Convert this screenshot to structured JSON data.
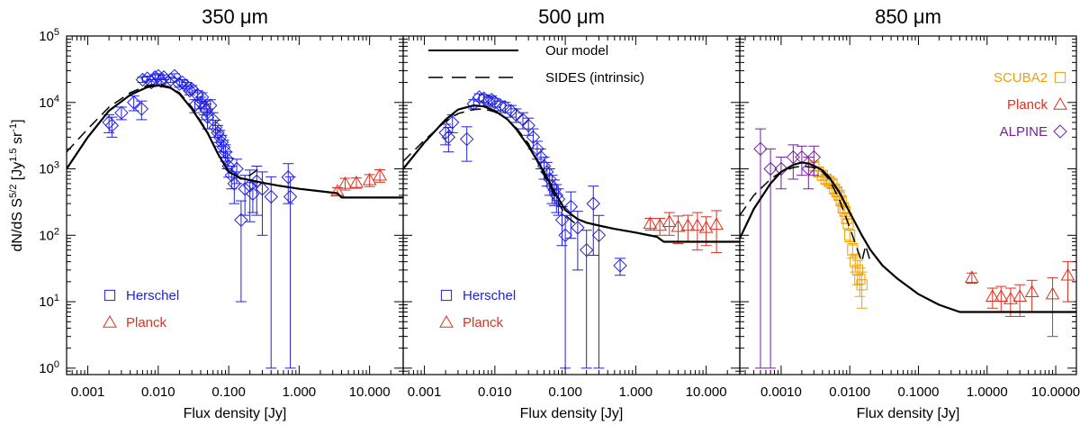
{
  "figure": {
    "ylabel": "dN/dS S^5/2 [Jy^1.5 sr^-1]",
    "ylabel_parts": {
      "main": "dN/dS S",
      "p1": "5/2",
      "mid": " [Jy",
      "p2": "1.5",
      "mid2": " sr",
      "p3": "-1",
      "end": "]"
    }
  },
  "chart_data": [
    {
      "type": "scatter",
      "title": "350 μm",
      "xlabel": "Flux density [Jy]",
      "ylabel": "dN/dS S^5/2 [Jy^1.5 sr^-1]",
      "xscale": "log",
      "yscale": "log",
      "xlim": [
        0.0005,
        30
      ],
      "ylim": [
        0.8,
        100000
      ],
      "xticks": [
        0.001,
        0.01,
        0.1,
        1,
        10
      ],
      "xtick_labels": [
        "0.001",
        "0.010",
        "0.100",
        "1.000",
        "10.000"
      ],
      "yticks": [
        1,
        10,
        100,
        1000,
        10000,
        100000
      ],
      "ytick_labels": [
        "10^0",
        "10^1",
        "10^2",
        "10^3",
        "10^4",
        "10^5"
      ],
      "legend": [
        {
          "label": "Herschel",
          "marker": "square",
          "color": "#2020e0"
        },
        {
          "label": "Planck",
          "marker": "triangle",
          "color": "#e03020"
        }
      ],
      "model": {
        "name": "Our model",
        "style": "solid",
        "x": [
          0.0005,
          0.001,
          0.002,
          0.004,
          0.007,
          0.01,
          0.015,
          0.02,
          0.03,
          0.05,
          0.07,
          0.1,
          0.15,
          0.2,
          0.3,
          0.5,
          1,
          2,
          3.5,
          4,
          10,
          30
        ],
        "y": [
          1000,
          3000,
          7500,
          13000,
          17000,
          18000,
          16500,
          13500,
          8000,
          3500,
          1700,
          900,
          720,
          680,
          620,
          560,
          500,
          460,
          430,
          370,
          370,
          370
        ]
      },
      "sides": {
        "name": "SIDES (intrinsic)",
        "style": "dashed",
        "x": [
          0.0005,
          0.001,
          0.002,
          0.004,
          0.007,
          0.01,
          0.015,
          0.02,
          0.03,
          0.05,
          0.07,
          0.1,
          0.15,
          0.2,
          0.3
        ],
        "y": [
          1800,
          4000,
          8500,
          14000,
          18000,
          19000,
          17000,
          14000,
          8500,
          3600,
          1700,
          900,
          700,
          800,
          1100
        ]
      },
      "series": [
        {
          "name": "Herschel",
          "marker": "diamond",
          "color": "#2020e0",
          "x": [
            0.002,
            0.0022,
            0.003,
            0.0045,
            0.0058,
            0.006,
            0.007,
            0.008,
            0.009,
            0.01,
            0.011,
            0.012,
            0.015,
            0.017,
            0.02,
            0.022,
            0.025,
            0.028,
            0.03,
            0.033,
            0.036,
            0.04,
            0.042,
            0.045,
            0.048,
            0.05,
            0.055,
            0.06,
            0.065,
            0.07,
            0.075,
            0.08,
            0.085,
            0.09,
            0.095,
            0.1,
            0.11,
            0.12,
            0.13,
            0.15,
            0.17,
            0.2,
            0.22,
            0.25,
            0.3,
            0.4,
            0.7,
            0.75
          ],
          "y": [
            5000,
            4500,
            7000,
            10000,
            8000,
            22000,
            23000,
            20000,
            24000,
            25000,
            21000,
            24000,
            22000,
            25000,
            19000,
            20000,
            18000,
            15000,
            16000,
            9000,
            13000,
            10000,
            12000,
            8500,
            7500,
            6000,
            9000,
            5500,
            4200,
            3500,
            3000,
            2500,
            2100,
            1800,
            1400,
            1100,
            800,
            600,
            1000,
            170,
            500,
            560,
            420,
            650,
            500,
            380,
            750,
            380
          ],
          "yerr": [
            1500,
            1500,
            1500,
            2500,
            2500,
            2000,
            2000,
            2000,
            2000,
            2000,
            2000,
            2000,
            2000,
            2000,
            2000,
            2000,
            2000,
            2000,
            2000,
            2000,
            2000,
            2000,
            2000,
            2000,
            2000,
            2000,
            2000,
            1500,
            1200,
            1000,
            800,
            700,
            600,
            500,
            400,
            350,
            300,
            300,
            400,
            160,
            300,
            400,
            200,
            450,
            400,
            379,
            450,
            379
          ]
        },
        {
          "name": "Planck",
          "marker": "triangle",
          "color": "#e03020",
          "x": [
            3.5,
            4.5,
            6.5,
            10,
            14
          ],
          "y": [
            460,
            600,
            620,
            680,
            800
          ],
          "yerr": [
            60,
            120,
            110,
            140,
            170
          ]
        }
      ]
    },
    {
      "type": "scatter",
      "title": "500 μm",
      "xlabel": "Flux density [Jy]",
      "xscale": "log",
      "yscale": "log",
      "xlim": [
        0.0005,
        30
      ],
      "ylim": [
        0.8,
        100000
      ],
      "xticks": [
        0.001,
        0.01,
        0.1,
        1,
        10
      ],
      "xtick_labels": [
        "0.001",
        "0.010",
        "0.100",
        "1.000",
        "10.000"
      ],
      "legend": [
        {
          "label": "Our model",
          "style": "solid",
          "color": "#000000"
        },
        {
          "label": "SIDES (intrinsic)",
          "style": "dashed",
          "color": "#000000"
        },
        {
          "label": "Herschel",
          "marker": "square",
          "color": "#2020e0"
        },
        {
          "label": "Planck",
          "marker": "triangle",
          "color": "#e03020"
        }
      ],
      "model": {
        "name": "Our model",
        "style": "solid",
        "x": [
          0.0005,
          0.001,
          0.002,
          0.003,
          0.005,
          0.007,
          0.01,
          0.015,
          0.02,
          0.03,
          0.05,
          0.07,
          0.1,
          0.15,
          0.2,
          0.3,
          0.5,
          1,
          2,
          2.5,
          3,
          10,
          30
        ],
        "y": [
          1000,
          2500,
          5500,
          7800,
          9000,
          8700,
          7500,
          5600,
          4000,
          2200,
          900,
          450,
          240,
          175,
          155,
          140,
          125,
          110,
          95,
          80,
          80,
          80,
          80
        ]
      },
      "sides": {
        "name": "SIDES (intrinsic)",
        "style": "dashed",
        "x": [
          0.0005,
          0.001,
          0.002,
          0.003,
          0.005,
          0.007,
          0.01,
          0.015,
          0.02,
          0.03,
          0.05,
          0.07,
          0.1,
          0.15
        ],
        "y": [
          1300,
          2700,
          5200,
          6800,
          7800,
          8000,
          7200,
          5600,
          4200,
          2400,
          800,
          400,
          200,
          140
        ]
      },
      "series": [
        {
          "name": "Herschel",
          "marker": "diamond",
          "color": "#2020e0",
          "x": [
            0.002,
            0.0022,
            0.0025,
            0.004,
            0.005,
            0.006,
            0.007,
            0.008,
            0.009,
            0.01,
            0.012,
            0.014,
            0.017,
            0.02,
            0.025,
            0.03,
            0.035,
            0.04,
            0.045,
            0.05,
            0.055,
            0.06,
            0.065,
            0.07,
            0.075,
            0.08,
            0.09,
            0.1,
            0.12,
            0.15,
            0.2,
            0.25,
            0.3,
            0.6
          ],
          "y": [
            3500,
            3000,
            5000,
            2800,
            9500,
            12000,
            11500,
            10500,
            11000,
            10000,
            9000,
            8500,
            7500,
            6500,
            5500,
            4500,
            3000,
            2000,
            1500,
            1100,
            900,
            700,
            550,
            480,
            400,
            350,
            170,
            100,
            270,
            130,
            60,
            300,
            100,
            35
          ],
          "yerr": [
            1200,
            1200,
            1500,
            1500,
            1500,
            1500,
            1500,
            1500,
            1500,
            1500,
            1500,
            1500,
            1500,
            1500,
            1500,
            1300,
            1000,
            600,
            500,
            400,
            350,
            300,
            250,
            200,
            180,
            150,
            100,
            99,
            180,
            100,
            59,
            250,
            99,
            10
          ]
        },
        {
          "name": "Planck",
          "marker": "triangle",
          "color": "#e03020",
          "x": [
            1.6,
            2.2,
            3,
            4,
            5.5,
            7.5,
            10,
            14
          ],
          "y": [
            150,
            140,
            160,
            135,
            140,
            140,
            130,
            145
          ],
          "yerr": [
            30,
            40,
            60,
            60,
            60,
            80,
            60,
            90
          ]
        }
      ]
    },
    {
      "type": "scatter",
      "title": "850 μm",
      "xlabel": "Flux density [Jy]",
      "xscale": "log",
      "yscale": "log",
      "xlim": [
        0.00025,
        20
      ],
      "ylim": [
        0.8,
        100000
      ],
      "xticks": [
        0.001,
        0.01,
        0.1,
        1,
        10
      ],
      "xtick_labels": [
        "0.0010",
        "0.0100",
        "0.1000",
        "1.0000",
        "10.0000"
      ],
      "legend": [
        {
          "label": "SCUBA2",
          "marker": "square",
          "color": "#f0a000"
        },
        {
          "label": "Planck",
          "marker": "triangle",
          "color": "#e03020"
        },
        {
          "label": "ALPINE",
          "marker": "diamond",
          "color": "#7020a0"
        }
      ],
      "model": {
        "name": "Our model",
        "style": "solid",
        "x": [
          0.00025,
          0.0004,
          0.0007,
          0.001,
          0.0015,
          0.002,
          0.0025,
          0.003,
          0.004,
          0.005,
          0.007,
          0.01,
          0.015,
          0.02,
          0.03,
          0.05,
          0.1,
          0.2,
          0.4,
          1,
          3,
          20
        ],
        "y": [
          90,
          250,
          600,
          900,
          1150,
          1250,
          1200,
          1120,
          950,
          750,
          450,
          220,
          100,
          60,
          35,
          22,
          13,
          9,
          7,
          7,
          7,
          7
        ]
      },
      "sides": {
        "name": "SIDES (intrinsic)",
        "style": "dashed",
        "x": [
          0.00025,
          0.0004,
          0.0007,
          0.001,
          0.0015,
          0.002,
          0.003,
          0.004,
          0.005,
          0.007,
          0.01,
          0.013,
          0.015,
          0.017,
          0.02
        ],
        "y": [
          200,
          400,
          700,
          900,
          1050,
          1100,
          1050,
          900,
          700,
          350,
          130,
          60,
          40,
          70,
          40
        ]
      },
      "series": [
        {
          "name": "SCUBA2",
          "marker": "square",
          "color": "#f0a000",
          "x": [
            0.003,
            0.0035,
            0.004,
            0.0045,
            0.005,
            0.0055,
            0.006,
            0.0065,
            0.007,
            0.0075,
            0.008,
            0.0085,
            0.009,
            0.0095,
            0.01,
            0.011,
            0.012,
            0.013,
            0.014,
            0.015
          ],
          "y": [
            1100,
            900,
            800,
            700,
            650,
            600,
            500,
            450,
            400,
            330,
            260,
            230,
            180,
            150,
            100,
            60,
            40,
            30,
            22,
            18
          ],
          "yerr": [
            150,
            130,
            120,
            100,
            90,
            80,
            70,
            60,
            50,
            45,
            40,
            35,
            30,
            25,
            20,
            15,
            12,
            12,
            10,
            10
          ]
        },
        {
          "name": "Planck",
          "marker": "triangle",
          "color": "#e03020",
          "x": [
            0.6,
            1.2,
            1.6,
            2.2,
            3,
            4.5,
            9,
            15
          ],
          "y": [
            23,
            12,
            12,
            11,
            12,
            14,
            13,
            25
          ],
          "yerr": [
            4,
            4,
            5,
            5,
            6,
            7,
            10,
            15
          ]
        },
        {
          "name": "ALPINE",
          "marker": "diamond",
          "color": "#7020a0",
          "x": [
            0.0005,
            0.0007,
            0.001,
            0.0015,
            0.002,
            0.0025,
            0.003
          ],
          "y": [
            2000,
            1000,
            1000,
            1500,
            1500,
            1000,
            1500
          ],
          "yerr": [
            1999,
            999,
            500,
            800,
            700,
            500,
            700
          ]
        }
      ]
    }
  ]
}
